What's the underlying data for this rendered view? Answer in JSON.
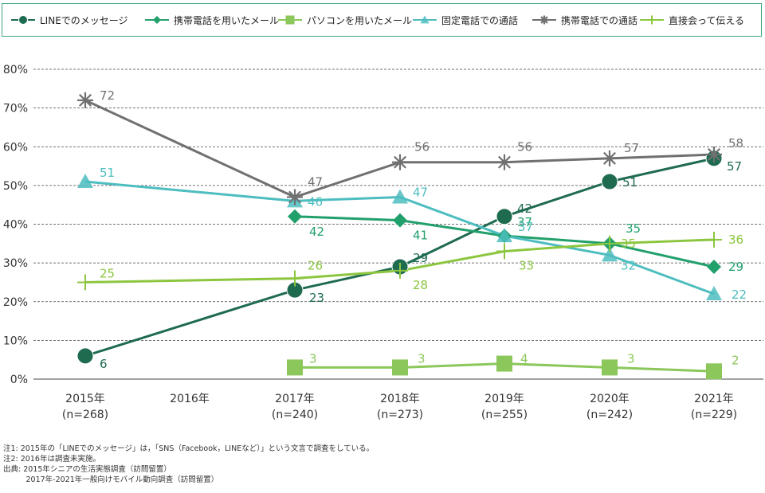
{
  "chart_data": {
    "type": "line",
    "categories": [
      "2015年\n(n=268)",
      "2016年",
      "2017年\n(n=240)",
      "2018年\n(n=273)",
      "2019年\n(n=255)",
      "2020年\n(n=242)",
      "2021年\n(n=229)"
    ],
    "ylim": [
      0,
      80
    ],
    "yticks": [
      "0%",
      "10%",
      "20%",
      "30%",
      "40%",
      "50%",
      "60%",
      "70%",
      "80%"
    ],
    "grid": true,
    "legend": "top",
    "series": [
      {
        "name": "LINEでのメッセージ",
        "color": "#1f6b50",
        "marker": "circle",
        "values": [
          6,
          null,
          23,
          29,
          42,
          51,
          57
        ],
        "labels": [
          "6",
          null,
          "23",
          "29",
          "42",
          "51",
          "57"
        ]
      },
      {
        "name": "携帯電話を用いたメール",
        "color": "#22a06b",
        "marker": "diamond",
        "values": [
          null,
          null,
          42,
          41,
          37,
          35,
          29
        ],
        "labels": [
          null,
          null,
          "42",
          "41",
          "37",
          "35",
          "29"
        ]
      },
      {
        "name": "パソコンを用いたメール",
        "color": "#8bc75a",
        "marker": "square",
        "values": [
          null,
          null,
          3,
          3,
          4,
          3,
          2
        ],
        "labels": [
          null,
          null,
          "3",
          "3",
          "4",
          "3",
          "2"
        ]
      },
      {
        "name": "固定電話での通話",
        "color": "#4dbdbf",
        "marker": "triangle",
        "values": [
          51,
          null,
          46,
          47,
          37,
          32,
          22
        ],
        "labels": [
          "51",
          null,
          "46",
          "47",
          "37",
          "32",
          "22"
        ]
      },
      {
        "name": "携帯電話での通話",
        "color": "#707070",
        "marker": "asterisk",
        "values": [
          72,
          null,
          47,
          56,
          56,
          57,
          58
        ],
        "labels": [
          "72",
          null,
          "47",
          "56",
          "56",
          "57",
          "58"
        ]
      },
      {
        "name": "直接会って伝える",
        "color": "#8cc63f",
        "marker": "plus",
        "values": [
          25,
          null,
          26,
          28,
          33,
          35,
          36
        ],
        "labels": [
          "25",
          null,
          "26",
          "28",
          "33",
          "35",
          "36"
        ]
      }
    ]
  },
  "notes": [
    "注1: 2015年の「LINEでのメッセージ」は，「SNS（Facebook，LINEなど）」という文言で調査をしている。",
    "注2: 2016年は調査未実施。",
    "出典: 2015年シニアの生活実態調査（訪問留置）",
    "　　　2017年-2021年一般向けモバイル動向調査（訪問留置）"
  ]
}
